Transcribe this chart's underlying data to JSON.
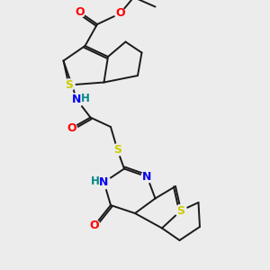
{
  "bg_color": "#ececec",
  "fig_size": [
    3.0,
    3.0
  ],
  "dpi": 100,
  "bond_color": "#1a1a1a",
  "bond_width": 1.4,
  "atom_colors": {
    "S": "#cccc00",
    "N": "#0000ee",
    "O": "#ff0000",
    "H": "#008888",
    "C": "#1a1a1a"
  }
}
